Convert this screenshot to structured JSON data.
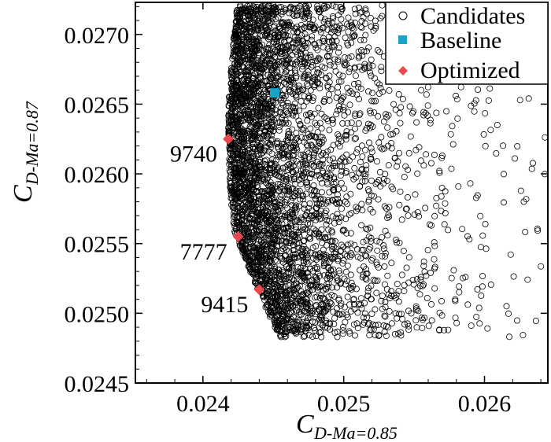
{
  "chart_data": {
    "type": "scatter",
    "xlabel_main": "C",
    "xlabel_sub": "D-Ma=0.85",
    "ylabel_main": "C",
    "ylabel_sub": "D-Ma=0.87",
    "xlim": [
      0.02352,
      0.02645
    ],
    "ylim": [
      0.0245,
      0.02723
    ],
    "x_ticks": [
      0.024,
      0.025,
      0.026
    ],
    "x_tick_labels": [
      "0.024",
      "0.025",
      "0.026"
    ],
    "y_ticks": [
      0.0245,
      0.025,
      0.0255,
      0.026,
      0.0265,
      0.027
    ],
    "y_tick_labels": [
      "0.0245",
      "0.0250",
      "0.0255",
      "0.0260",
      "0.0265",
      "0.0270"
    ],
    "grid": false,
    "legend_position": "top-right",
    "series": [
      {
        "name": "Candidates",
        "marker": "open-circle",
        "color": "#000000",
        "approx_count": 4200,
        "distribution": "dense crescent cloud; left edge from about (0.02418,0.02625) down to (0.02445,0.02495), thinning toward the right up to x = 0.0264"
      },
      {
        "name": "Baseline",
        "marker": "square",
        "color": "#1aa3c9",
        "points": [
          {
            "x": 0.02451,
            "y": 0.02658
          }
        ]
      },
      {
        "name": "Optimized",
        "marker": "diamond",
        "color": "#e8484e",
        "points": [
          {
            "x": 0.02418,
            "y": 0.02625,
            "label": "9740"
          },
          {
            "x": 0.02425,
            "y": 0.02555,
            "label": "7777"
          },
          {
            "x": 0.0244,
            "y": 0.02517,
            "label": "9415"
          }
        ]
      }
    ]
  }
}
